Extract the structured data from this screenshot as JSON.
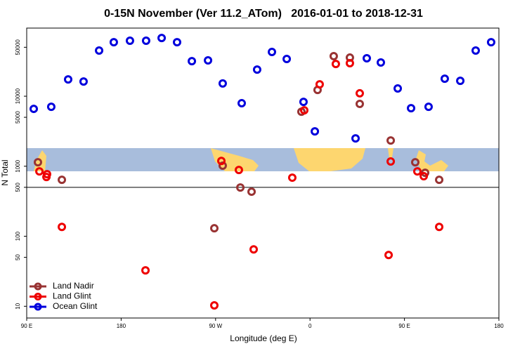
{
  "chart_data": {
    "type": "scatter",
    "title": "0-15N November (Ver 11.2_ATom)   2016-01-01 to 2018-12-31",
    "xlabel": "Longitude (deg E)",
    "ylabel": "N Total",
    "xlim": [
      90,
      540
    ],
    "xticks": [
      {
        "value": 90,
        "label": "90 E"
      },
      180,
      {
        "value": 270,
        "label": "90 W"
      },
      {
        "value": 360,
        "label": "0"
      },
      {
        "value": 450,
        "label": "90 E"
      },
      {
        "value": 540,
        "label": "180"
      }
    ],
    "ylim": [
      6.8,
      94000
    ],
    "yticks": [
      10,
      50,
      100,
      500,
      1000,
      5000,
      10000,
      50000
    ],
    "log_y": true,
    "hline": 500,
    "legend": "lower left",
    "series": [
      {
        "name": "Land Nadir",
        "color": "#993333",
        "x": [
          100.7,
          123.5,
          268.8,
          276.8,
          293.6,
          304.3,
          351.8,
          367.2,
          382.6,
          398.0,
          407.4,
          436.9,
          460.3,
          469.7,
          483.1
        ],
        "values": [
          1140,
          640,
          130,
          1020,
          497,
          433,
          6010,
          12300,
          37300,
          35600,
          7760,
          2330,
          1140,
          807,
          640
        ]
      },
      {
        "name": "Land Glint",
        "color": "#ee0000",
        "x": [
          102.1,
          109.4,
          108.8,
          123.5,
          203.2,
          268.8,
          275.5,
          292.2,
          306.3,
          343.1,
          354.5,
          369.2,
          384.6,
          398.0,
          407.4,
          434.9,
          436.9,
          462.3,
          468.4,
          483.1
        ],
        "values": [
          845,
          771,
          703,
          136,
          32.6,
          10.3,
          1190,
          885,
          65,
          687,
          6300,
          14800,
          28900,
          29600,
          11000,
          54,
          1170,
          845,
          720,
          136
        ]
      },
      {
        "name": "Ocean Glint",
        "color": "#0000dd",
        "x": [
          96.7,
          113.4,
          129.5,
          144.2,
          159.0,
          173.0,
          188.4,
          203.8,
          218.6,
          233.3,
          247.4,
          262.8,
          276.8,
          294.9,
          309.6,
          323.7,
          337.8,
          353.8,
          364.6,
          403.4,
          414.1,
          427.5,
          443.6,
          456.3,
          473.0,
          488.4,
          503.2,
          517.9,
          532.6
        ],
        "values": [
          6600,
          7070,
          17400,
          16200,
          44900,
          59100,
          62000,
          62000,
          67900,
          59100,
          31700,
          32500,
          15200,
          7940,
          24000,
          42900,
          34000,
          8310,
          3150,
          2500,
          34800,
          30300,
          12900,
          6750,
          7070,
          17800,
          16600,
          44900,
          59100
        ]
      }
    ]
  }
}
